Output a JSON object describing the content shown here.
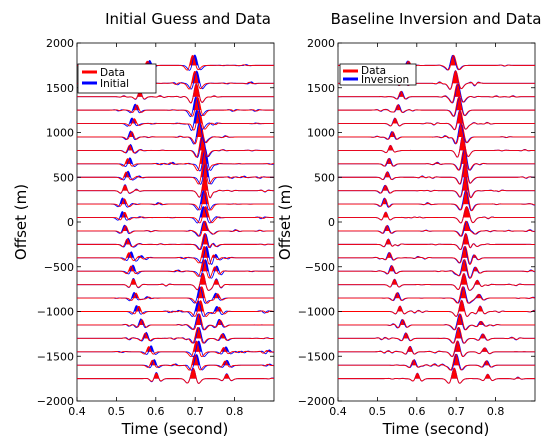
{
  "chart_data": [
    {
      "type": "line",
      "title": "Initial Guess and Data",
      "xlabel": "Time (second)",
      "ylabel": "Offset (m)",
      "xlim": [
        0.4,
        0.9
      ],
      "ylim": [
        -2000,
        2000
      ],
      "xticks": [
        0.4,
        0.5,
        0.6,
        0.7,
        0.8
      ],
      "yticks": [
        -2000,
        -1500,
        -1000,
        -500,
        0,
        500,
        1000,
        1500,
        2000
      ],
      "offsets": [
        -1750,
        -1600,
        -1450,
        -1300,
        -1150,
        -1000,
        -850,
        -700,
        -550,
        -400,
        -250,
        -100,
        50,
        200,
        350,
        500,
        650,
        800,
        950,
        1100,
        1250,
        1400,
        1550,
        1750
      ],
      "legend": {
        "position": "top-left",
        "entries": [
          "Data",
          "Initial"
        ]
      },
      "series": [
        {
          "name": "Data",
          "color": "#ff0000"
        },
        {
          "name": "Initial",
          "color": "#0000ff"
        }
      ]
    },
    {
      "type": "line",
      "title": "Baseline Inversion and Data",
      "xlabel": "Time (second)",
      "ylabel": "Offset (m)",
      "xlim": [
        0.4,
        0.9
      ],
      "ylim": [
        -2000,
        2000
      ],
      "xticks": [
        0.4,
        0.5,
        0.6,
        0.7,
        0.8
      ],
      "yticks": [
        -2000,
        -1500,
        -1000,
        -500,
        0,
        500,
        1000,
        1500,
        2000
      ],
      "offsets": [
        -1750,
        -1600,
        -1450,
        -1300,
        -1150,
        -1000,
        -850,
        -700,
        -550,
        -400,
        -250,
        -100,
        50,
        200,
        350,
        500,
        650,
        800,
        950,
        1100,
        1250,
        1400,
        1550,
        1750
      ],
      "legend": {
        "position": "top-left",
        "entries": [
          "Data",
          "Inversion"
        ]
      },
      "series": [
        {
          "name": "Data",
          "color": "#ff0000"
        },
        {
          "name": "Inversion",
          "color": "#0000ff"
        }
      ]
    }
  ]
}
